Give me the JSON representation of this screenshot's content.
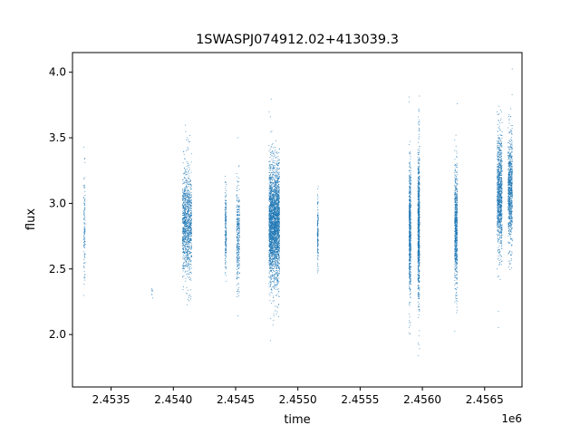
{
  "chart_data": {
    "type": "scatter",
    "title": "1SWASPJ074912.02+413039.3",
    "xlabel": "time",
    "ylabel": "flux",
    "x_offset_label": "1e6",
    "x_tick_labels": [
      "2.4535",
      "2.4540",
      "2.4545",
      "2.4550",
      "2.4555",
      "2.4560",
      "2.4565"
    ],
    "x_ticks": [
      2453500,
      2454000,
      2454500,
      2455000,
      2455500,
      2456000,
      2456500
    ],
    "y_tick_labels": [
      "2.0",
      "2.5",
      "3.0",
      "3.5",
      "4.0"
    ],
    "y_ticks": [
      2.0,
      2.5,
      3.0,
      3.5,
      4.0
    ],
    "xlim": [
      2453190,
      2456800
    ],
    "ylim": [
      1.6,
      4.15
    ],
    "grid": false,
    "marker_color": "#1f77b4",
    "clusters": [
      {
        "t_center": 2453285,
        "t_width": 12,
        "f_center": 2.85,
        "f_spread": 0.2,
        "n": 120
      },
      {
        "t_center": 2453830,
        "t_width": 6,
        "f_center": 2.4,
        "f_spread": 0.15,
        "n": 8
      },
      {
        "t_center": 2454110,
        "t_width": 75,
        "f_center": 2.85,
        "f_spread": 0.2,
        "n": 1100
      },
      {
        "t_center": 2454420,
        "t_width": 12,
        "f_center": 2.78,
        "f_spread": 0.16,
        "n": 200
      },
      {
        "t_center": 2454520,
        "t_width": 25,
        "f_center": 2.75,
        "f_spread": 0.2,
        "n": 320
      },
      {
        "t_center": 2454810,
        "t_width": 85,
        "f_center": 2.85,
        "f_spread": 0.22,
        "n": 2800
      },
      {
        "t_center": 2455160,
        "t_width": 8,
        "f_center": 2.78,
        "f_spread": 0.12,
        "n": 160
      },
      {
        "t_center": 2455900,
        "t_width": 15,
        "f_center": 2.8,
        "f_spread": 0.26,
        "n": 650
      },
      {
        "t_center": 2455970,
        "t_width": 15,
        "f_center": 2.85,
        "f_spread": 0.28,
        "n": 800
      },
      {
        "t_center": 2456270,
        "t_width": 22,
        "f_center": 2.83,
        "f_spread": 0.22,
        "n": 700
      },
      {
        "t_center": 2456620,
        "t_width": 40,
        "f_center": 3.08,
        "f_spread": 0.22,
        "n": 1000
      },
      {
        "t_center": 2456705,
        "t_width": 35,
        "f_center": 3.1,
        "f_spread": 0.2,
        "n": 800
      }
    ]
  }
}
